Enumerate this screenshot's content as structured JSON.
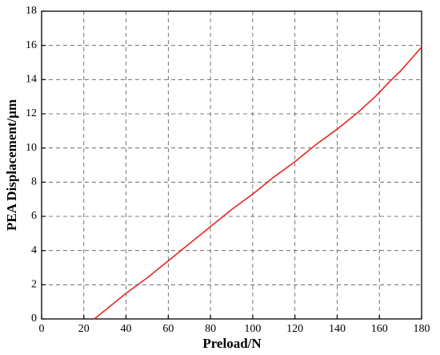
{
  "chart_data": {
    "type": "line",
    "x_label": "Preload/N",
    "y_label": "PEA Displacement/μm",
    "x": [
      25,
      30,
      40,
      50,
      60,
      70,
      80,
      90,
      100,
      110,
      120,
      130,
      140,
      150,
      158,
      165,
      170,
      175,
      180
    ],
    "values": [
      0,
      0.5,
      1.5,
      2.4,
      3.4,
      4.4,
      5.4,
      6.4,
      7.3,
      8.3,
      9.2,
      10.2,
      11.1,
      12.1,
      13.0,
      13.9,
      14.5,
      15.2,
      15.9
    ],
    "color": "#e8261e",
    "xlim": [
      0,
      180
    ],
    "xticks": [
      0,
      20,
      40,
      60,
      80,
      100,
      120,
      140,
      160,
      180
    ],
    "ylim": [
      0,
      18
    ],
    "yticks": [
      0,
      2,
      4,
      6,
      8,
      10,
      12,
      14,
      16,
      18
    ],
    "grid": true
  }
}
